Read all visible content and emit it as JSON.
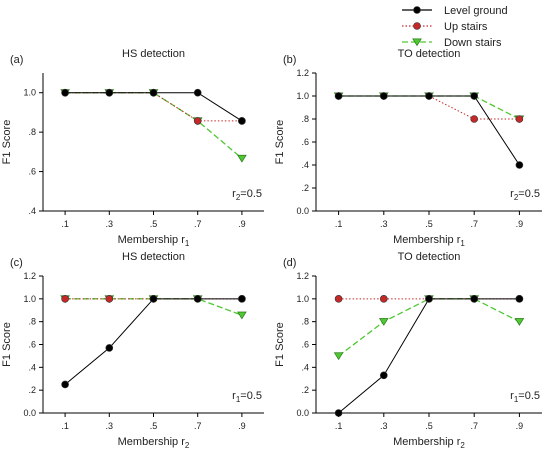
{
  "legend": [
    {
      "name": "Level ground",
      "color": "#000000",
      "marker": "circle",
      "dash": "solid"
    },
    {
      "name": "Up stairs",
      "color": "#c62828",
      "marker": "circle",
      "dash": "dotted"
    },
    {
      "name": "Down stairs",
      "color": "#4fc832",
      "marker": "triangle-down",
      "dash": "dashed"
    }
  ],
  "chart_data": [
    {
      "type": "line",
      "panel": "(a)",
      "title": "HS detection",
      "xlabel": "Membership r",
      "xlabel_sub": "1",
      "ylabel": "F1 Score",
      "note": "r",
      "note_sub": "2",
      "note_value": "=0.5",
      "x": [
        0.1,
        0.3,
        0.5,
        0.7,
        0.9
      ],
      "x_ticks": [
        ".1",
        ".3",
        ".5",
        ".7",
        ".9"
      ],
      "ylim": [
        0.4,
        1.1
      ],
      "y_ticks": [
        {
          "v": 0.4,
          "label": ".4"
        },
        {
          "v": 0.6,
          "label": ".6"
        },
        {
          "v": 0.8,
          "label": ".8"
        },
        {
          "v": 1.0,
          "label": "1.0"
        }
      ],
      "series": [
        {
          "name": "Level ground",
          "values": [
            1.0,
            1.0,
            1.0,
            1.0,
            0.857
          ]
        },
        {
          "name": "Up stairs",
          "values": [
            1.0,
            1.0,
            1.0,
            0.857,
            0.857
          ]
        },
        {
          "name": "Down stairs",
          "values": [
            1.0,
            1.0,
            1.0,
            0.857,
            0.667
          ]
        }
      ]
    },
    {
      "type": "line",
      "panel": "(b)",
      "title": "TO detection",
      "xlabel": "Membership r",
      "xlabel_sub": "1",
      "ylabel": "F1 Score",
      "note": "r",
      "note_sub": "2",
      "note_value": "=0.5",
      "x": [
        0.1,
        0.3,
        0.5,
        0.7,
        0.9
      ],
      "x_ticks": [
        ".1",
        ".3",
        ".5",
        ".7",
        ".9"
      ],
      "ylim": [
        0.0,
        1.2
      ],
      "y_ticks": [
        {
          "v": 0.0,
          "label": "0.0"
        },
        {
          "v": 0.2,
          "label": ".2"
        },
        {
          "v": 0.4,
          "label": ".4"
        },
        {
          "v": 0.6,
          "label": ".6"
        },
        {
          "v": 0.8,
          "label": ".8"
        },
        {
          "v": 1.0,
          "label": "1.0"
        },
        {
          "v": 1.2,
          "label": "1.2"
        }
      ],
      "series": [
        {
          "name": "Level ground",
          "values": [
            1.0,
            1.0,
            1.0,
            1.0,
            0.4
          ]
        },
        {
          "name": "Up stairs",
          "values": [
            1.0,
            1.0,
            1.0,
            0.8,
            0.8
          ]
        },
        {
          "name": "Down stairs",
          "values": [
            1.0,
            1.0,
            1.0,
            1.0,
            0.8
          ]
        }
      ]
    },
    {
      "type": "line",
      "panel": "(c)",
      "title": "HS detection",
      "xlabel": "Membership r",
      "xlabel_sub": "2",
      "ylabel": "F1 Score",
      "note": "r",
      "note_sub": "1",
      "note_value": "=0.5",
      "x": [
        0.1,
        0.3,
        0.5,
        0.7,
        0.9
      ],
      "x_ticks": [
        ".1",
        ".3",
        ".5",
        ".7",
        ".9"
      ],
      "ylim": [
        0.0,
        1.2
      ],
      "y_ticks": [
        {
          "v": 0.0,
          "label": "0.0"
        },
        {
          "v": 0.2,
          "label": ".2"
        },
        {
          "v": 0.4,
          "label": ".4"
        },
        {
          "v": 0.6,
          "label": ".6"
        },
        {
          "v": 0.8,
          "label": ".8"
        },
        {
          "v": 1.0,
          "label": "1.0"
        },
        {
          "v": 1.2,
          "label": "1.2"
        }
      ],
      "series": [
        {
          "name": "Level ground",
          "values": [
            0.25,
            0.57,
            1.0,
            1.0,
            1.0
          ]
        },
        {
          "name": "Up stairs",
          "values": [
            1.0,
            1.0,
            1.0,
            1.0,
            1.0
          ]
        },
        {
          "name": "Down stairs",
          "values": [
            1.0,
            1.0,
            1.0,
            1.0,
            0.857
          ]
        }
      ]
    },
    {
      "type": "line",
      "panel": "(d)",
      "title": "TO detection",
      "xlabel": "Membership r",
      "xlabel_sub": "2",
      "ylabel": "F1 Score",
      "note": "r",
      "note_sub": "1",
      "note_value": "=0.5",
      "x": [
        0.1,
        0.3,
        0.5,
        0.7,
        0.9
      ],
      "x_ticks": [
        ".1",
        ".3",
        ".5",
        ".7",
        ".9"
      ],
      "ylim": [
        0.0,
        1.2
      ],
      "y_ticks": [
        {
          "v": 0.0,
          "label": "0.0"
        },
        {
          "v": 0.2,
          "label": ".2"
        },
        {
          "v": 0.4,
          "label": ".4"
        },
        {
          "v": 0.6,
          "label": ".6"
        },
        {
          "v": 0.8,
          "label": ".8"
        },
        {
          "v": 1.0,
          "label": "1.0"
        },
        {
          "v": 1.2,
          "label": "1.2"
        }
      ],
      "series": [
        {
          "name": "Level ground",
          "values": [
            0.0,
            0.33,
            1.0,
            1.0,
            1.0
          ]
        },
        {
          "name": "Up stairs",
          "values": [
            1.0,
            1.0,
            1.0,
            1.0,
            1.0
          ]
        },
        {
          "name": "Down stairs",
          "values": [
            0.5,
            0.8,
            1.0,
            1.0,
            0.8
          ]
        }
      ]
    }
  ]
}
